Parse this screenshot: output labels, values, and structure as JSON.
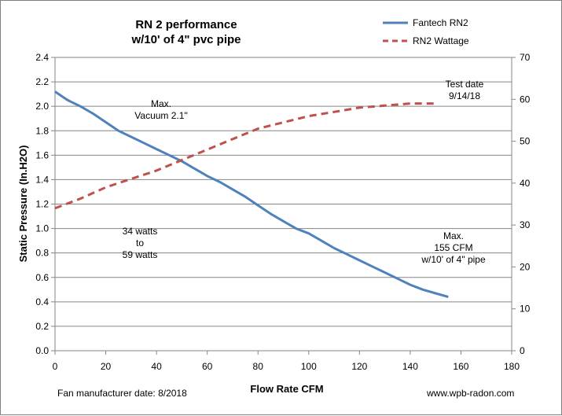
{
  "chart_data": {
    "type": "line",
    "title_lines": [
      "RN 2 performance",
      "w/10' of 4\" pvc pipe"
    ],
    "xlabel": "Flow Rate  CFM",
    "ylabel": "Static Pressure (In.H2O)",
    "xlim": [
      0,
      180
    ],
    "ylim": [
      0,
      2.4
    ],
    "y2lim": [
      0,
      70
    ],
    "x_ticks": [
      0,
      20,
      40,
      60,
      80,
      100,
      120,
      140,
      160,
      180
    ],
    "y_ticks": [
      "0.0",
      "0.2",
      "0.4",
      "0.6",
      "0.8",
      "1.0",
      "1.2",
      "1.4",
      "1.6",
      "1.8",
      "2.0",
      "2.2",
      "2.4"
    ],
    "y2_ticks": [
      "0",
      "10",
      "20",
      "30",
      "40",
      "50",
      "60",
      "70"
    ],
    "legend_position": "top-right",
    "grid": "horizontal",
    "series": [
      {
        "name": "Fantech RN2",
        "axis": "left",
        "color": "#4f81bd",
        "style": "solid",
        "x": [
          0,
          5,
          10,
          15,
          20,
          25,
          30,
          35,
          40,
          45,
          50,
          55,
          60,
          65,
          70,
          75,
          80,
          85,
          90,
          95,
          100,
          105,
          110,
          115,
          120,
          125,
          130,
          135,
          140,
          145,
          150,
          155
        ],
        "y": [
          2.12,
          2.05,
          2.0,
          1.94,
          1.87,
          1.8,
          1.75,
          1.7,
          1.65,
          1.6,
          1.55,
          1.49,
          1.43,
          1.38,
          1.32,
          1.26,
          1.19,
          1.12,
          1.06,
          1.0,
          0.96,
          0.9,
          0.84,
          0.79,
          0.74,
          0.69,
          0.64,
          0.59,
          0.54,
          0.5,
          0.47,
          0.44
        ]
      },
      {
        "name": "RN2 Wattage",
        "axis": "right",
        "color": "#c0504d",
        "style": "dashed",
        "x": [
          0,
          10,
          20,
          30,
          40,
          50,
          60,
          70,
          80,
          90,
          100,
          110,
          120,
          130,
          140,
          150
        ],
        "y": [
          34,
          36.3,
          39,
          41,
          43,
          45.5,
          48,
          50.5,
          53,
          54.5,
          56,
          57,
          58,
          58.5,
          59,
          59
        ]
      }
    ],
    "annotations": {
      "max_vacuum": [
        "Max.",
        "Vacuum 2.1\""
      ],
      "watts": [
        "34 watts",
        "to",
        "59 watts"
      ],
      "max_cfm": [
        "Max.",
        "155 CFM",
        "w/10' of 4\" pipe"
      ],
      "test_date": [
        "Test date",
        "9/14/18"
      ]
    },
    "footer_left": "Fan manufacturer date: 8/2018",
    "footer_right": "www.wpb-radon.com"
  }
}
